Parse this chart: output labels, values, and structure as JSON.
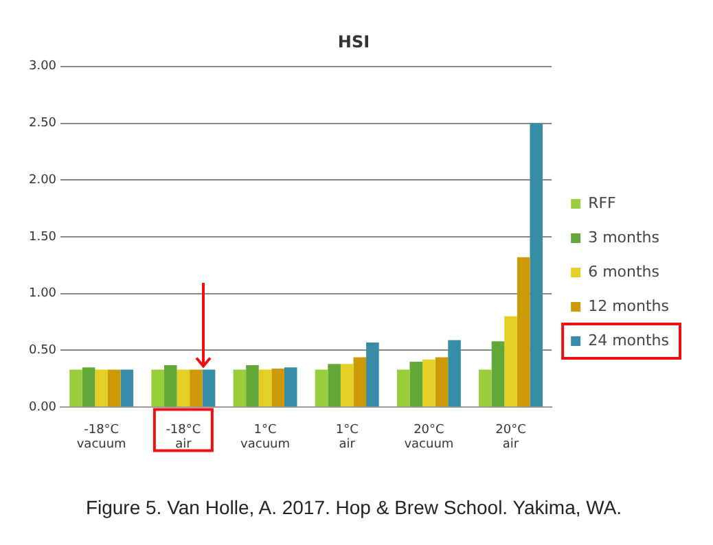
{
  "chart_data": {
    "type": "bar",
    "title": "HSI",
    "categories": [
      "-18°C\nvacuum",
      "-18°C\nair",
      "1°C\nvacuum",
      "1°C\nair",
      "20°C\nvacuum",
      "20°C\nair"
    ],
    "series": [
      {
        "name": "RFF",
        "color": "#9acd3c",
        "values": [
          0.33,
          0.33,
          0.33,
          0.33,
          0.33,
          0.33
        ]
      },
      {
        "name": "3 months",
        "color": "#62a737",
        "values": [
          0.35,
          0.37,
          0.37,
          0.38,
          0.4,
          0.58
        ]
      },
      {
        "name": "6 months",
        "color": "#e4cf24",
        "values": [
          0.33,
          0.33,
          0.33,
          0.38,
          0.42,
          0.8
        ]
      },
      {
        "name": "12 months",
        "color": "#cc9a06",
        "values": [
          0.33,
          0.33,
          0.34,
          0.44,
          0.44,
          1.32
        ]
      },
      {
        "name": "24 months",
        "color": "#378da8",
        "values": [
          0.33,
          0.33,
          0.35,
          0.57,
          0.59,
          2.5
        ]
      }
    ],
    "ylim": [
      0,
      3
    ],
    "yticks": [
      {
        "value": 0,
        "label": "0.00"
      },
      {
        "value": 0.5,
        "label": "0.50"
      },
      {
        "value": 1,
        "label": "1.00"
      },
      {
        "value": 1.5,
        "label": "1.50"
      },
      {
        "value": 2,
        "label": "2.00"
      },
      {
        "value": 2.5,
        "label": "2.50"
      },
      {
        "value": 3,
        "label": "3.00"
      }
    ],
    "grid": "y",
    "legend": "right",
    "annotations": [
      "Figure 5. Van Holle, A. 2017. Hop & Brew School. Yakima, WA."
    ]
  }
}
